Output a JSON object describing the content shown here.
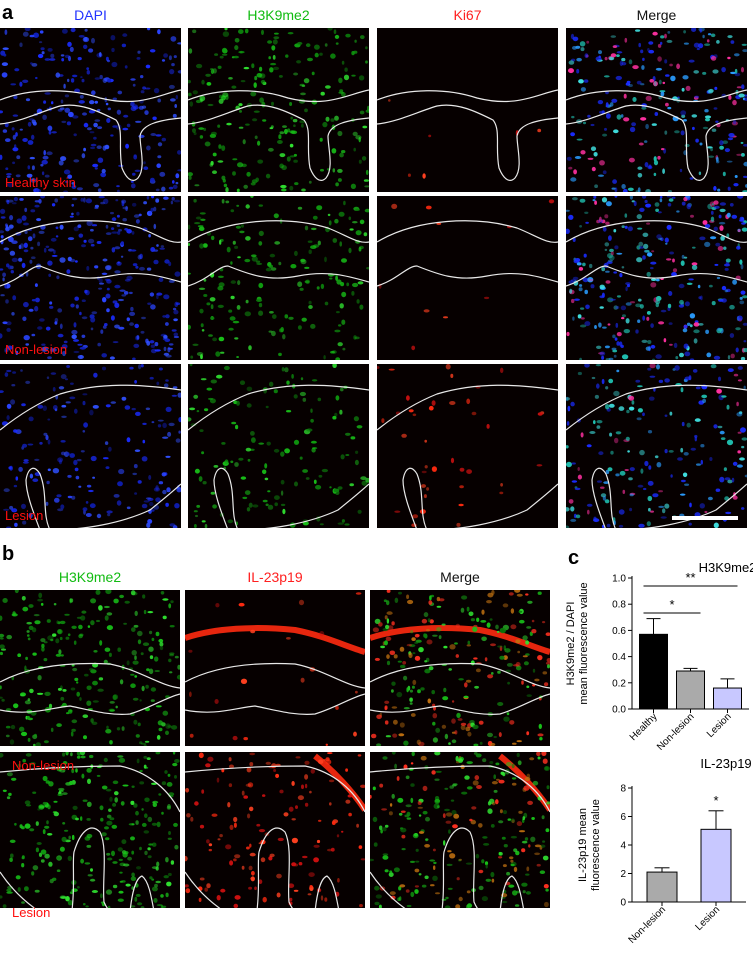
{
  "panel_a": {
    "letter": "a",
    "channels": [
      {
        "label": "DAPI",
        "color": "#2233ff"
      },
      {
        "label": "H3K9me2",
        "color": "#11bb11"
      },
      {
        "label": "Ki67",
        "color": "#ff2020"
      },
      {
        "label": "Merge",
        "color": "#111111"
      }
    ],
    "rows": [
      "Healthy skin",
      "Non-lesion",
      "Lesion"
    ]
  },
  "panel_b": {
    "letter": "b",
    "channels": [
      {
        "label": "H3K9me2",
        "color": "#11bb11"
      },
      {
        "label": "IL-23p19",
        "color": "#ff2020"
      },
      {
        "label": "Merge",
        "color": "#111111"
      }
    ],
    "rows": [
      "Non-lesion",
      "Lesion"
    ]
  },
  "panel_c": {
    "letter": "c",
    "charts": [
      {
        "type": "bar",
        "title": "H3K9me2",
        "ylabel_lines": [
          "H3K9me2 / DAPI",
          "mean fluorescence value"
        ],
        "categories": [
          "Healthy",
          "Non-lesion",
          "Lesion"
        ],
        "values": [
          0.57,
          0.29,
          0.16
        ],
        "errors": [
          0.12,
          0.02,
          0.07
        ],
        "colors": [
          "#000000",
          "#aaaaaa",
          "#c8c8ff"
        ],
        "ylim": [
          0,
          1.0
        ],
        "yticks": [
          "0.0",
          "0.2",
          "0.4",
          "0.6",
          "0.8",
          "1.0"
        ],
        "significance": [
          {
            "pair": [
              0,
              1
            ],
            "label": "*"
          },
          {
            "pair": [
              0,
              2
            ],
            "label": "**"
          }
        ]
      },
      {
        "type": "bar",
        "title": "IL-23p19",
        "ylabel_lines": [
          "IL-23p19 mean",
          "fluorescence value"
        ],
        "categories": [
          "Non-lesion",
          "Lesion"
        ],
        "values": [
          2.1,
          5.1
        ],
        "errors": [
          0.3,
          1.3
        ],
        "colors": [
          "#aaaaaa",
          "#c8c8ff"
        ],
        "ylim": [
          0,
          8
        ],
        "yticks": [
          "0",
          "2",
          "4",
          "6",
          "8"
        ],
        "significance": [
          {
            "bar": 1,
            "label": "*"
          }
        ]
      }
    ]
  }
}
